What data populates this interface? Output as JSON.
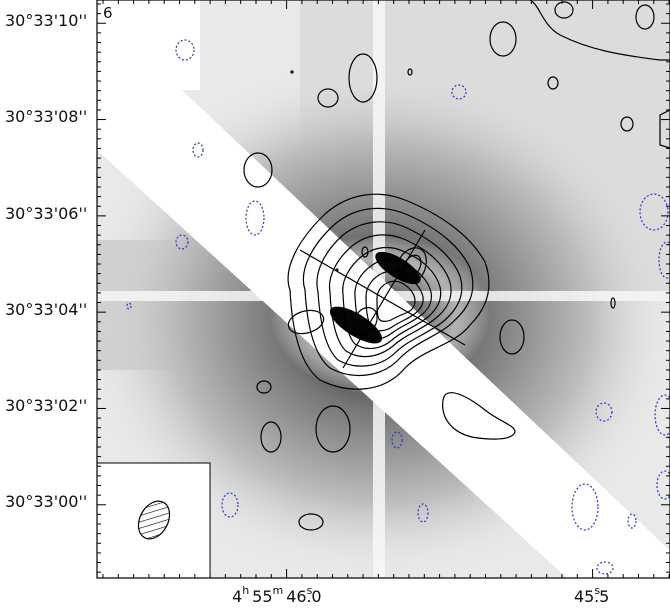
{
  "figure": {
    "panel_label": "6",
    "dec_ticks": [
      "30°33'10''",
      "30°33'08''",
      "30°33'06''",
      "30°33'04''",
      "30°33'02''",
      "30°33'00''"
    ],
    "ra_ticks": [
      {
        "h": "4",
        "hs": "h",
        "m": "55",
        "ms": "m",
        "s": "46",
        "ss": "s",
        "frac": ".0"
      },
      {
        "h": "",
        "hs": "",
        "m": "",
        "ms": "",
        "s": "45",
        "ss": "s",
        "frac": ".5"
      }
    ],
    "colors": {
      "positive_contour": "#000000",
      "negative_contour": "#2a36c8",
      "image_background": "#e8e8e8"
    }
  }
}
